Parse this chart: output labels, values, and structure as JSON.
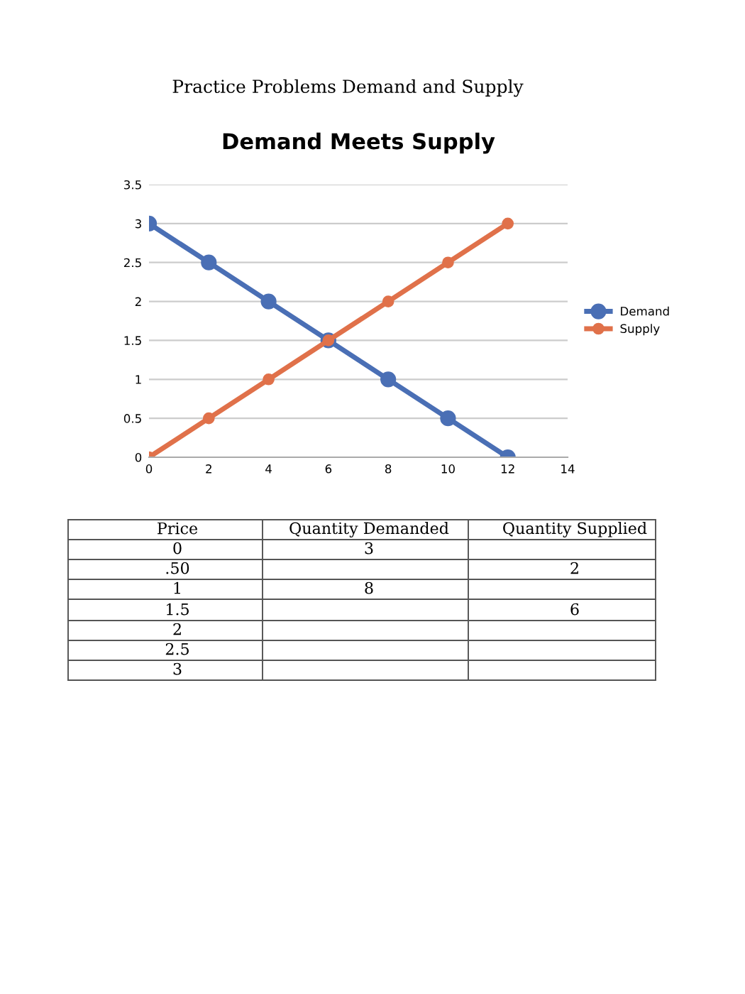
{
  "chart_data": {
    "type": "line",
    "title": "Demand Meets Supply",
    "x": [
      0,
      2,
      4,
      6,
      8,
      10,
      12
    ],
    "series": [
      {
        "name": "Demand",
        "color": "#4a6fb5",
        "values": [
          3,
          2.5,
          2,
          1.5,
          1,
          0.5,
          0
        ]
      },
      {
        "name": "Supply",
        "color": "#e0714a",
        "values": [
          0,
          0.5,
          1,
          1.5,
          2,
          2.5,
          3
        ]
      }
    ],
    "xlim": [
      0,
      14
    ],
    "xticks": [
      0,
      2,
      4,
      6,
      8,
      10,
      12,
      14
    ],
    "ylim": [
      0,
      3.5
    ],
    "yticks": [
      0,
      0.5,
      1,
      1.5,
      2,
      2.5,
      3,
      3.5
    ],
    "grid": "y",
    "legend": "right",
    "marker": "circle",
    "line_style": "solid",
    "annotations": [
      "Practice Problems Demand and Supply",
      "Price",
      "Quantity Demanded",
      "Quantity Supplied",
      "0",
      "3",
      ".50",
      "2",
      "1",
      "8",
      "1.5",
      "6",
      "2",
      "2.5",
      "3"
    ]
  }
}
